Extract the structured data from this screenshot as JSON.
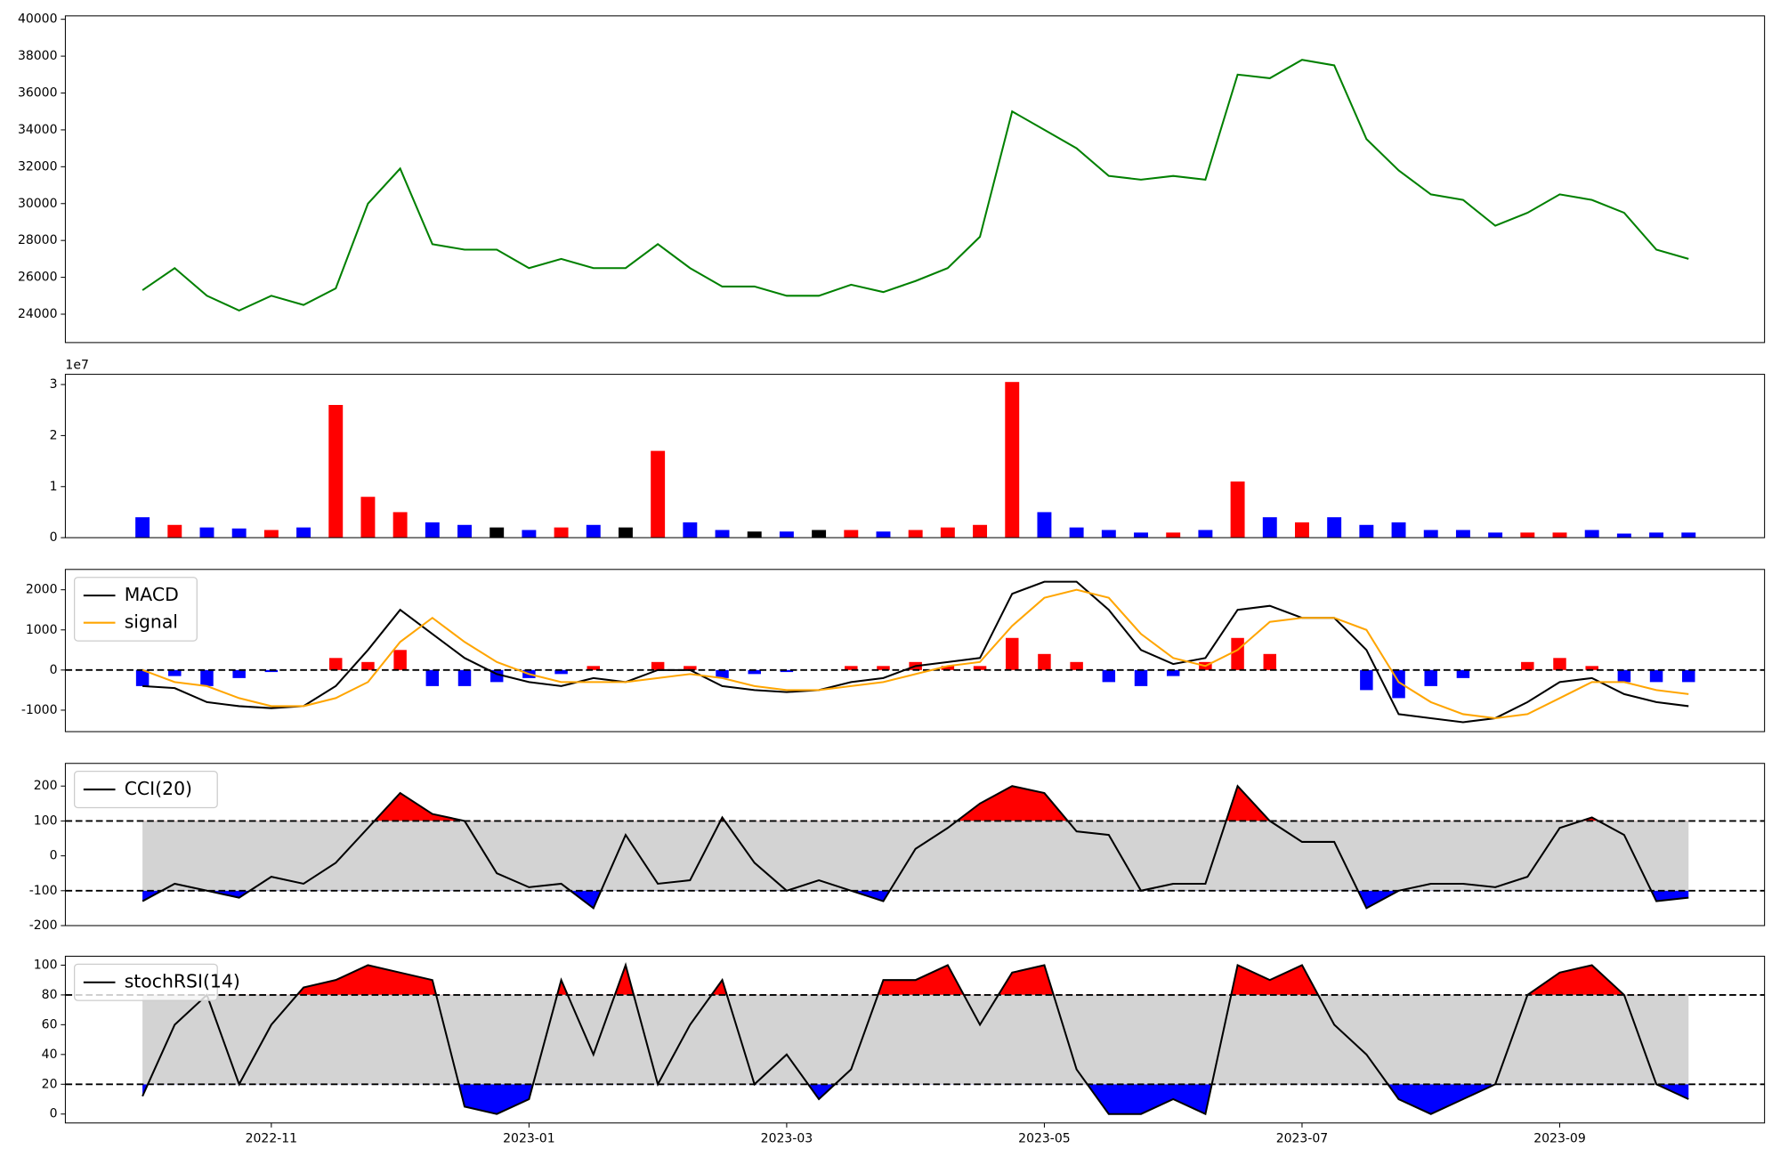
{
  "chart_data": [
    {
      "type": "line",
      "color": "#008000",
      "values": [
        25300,
        26500,
        25000,
        24200,
        25000,
        24500,
        25400,
        30000,
        31900,
        27800,
        27500,
        27500,
        26500,
        27000,
        26500,
        26500,
        27800,
        26500,
        25500,
        25500,
        25000,
        25000,
        25600,
        25200,
        25800,
        26500,
        28200,
        35000,
        34000,
        33000,
        31500,
        31300,
        31500,
        31300,
        37000,
        36800,
        37800,
        37500,
        33500,
        31800,
        30500,
        30200,
        28800,
        29500,
        30500,
        30200,
        29500,
        27500,
        27000
      ],
      "ylim": [
        22460,
        40185
      ],
      "yticks": [
        24000,
        26000,
        28000,
        30000,
        32000,
        34000,
        36000,
        38000,
        40000
      ],
      "grid": false
    },
    {
      "type": "bar",
      "offset_text": "1e7",
      "values": [
        4000000,
        2500000,
        2000000,
        1800000,
        1500000,
        2000000,
        26000000,
        8000000,
        5000000,
        3000000,
        2500000,
        2000000,
        1500000,
        2000000,
        2500000,
        2000000,
        17000000,
        3000000,
        1500000,
        1200000,
        1200000,
        1500000,
        1500000,
        1200000,
        1500000,
        2000000,
        2500000,
        30500000,
        5000000,
        2000000,
        1500000,
        1000000,
        1000000,
        1500000,
        11000000,
        4000000,
        3000000,
        4000000,
        2500000,
        3000000,
        1500000,
        1500000,
        1000000,
        1000000,
        1000000,
        1500000,
        800000,
        1000000,
        1000000
      ],
      "colors": [
        "#0000ff",
        "#ff0000",
        "#0000ff",
        "#0000ff",
        "#ff0000",
        "#0000ff",
        "#ff0000",
        "#ff0000",
        "#ff0000",
        "#0000ff",
        "#0000ff",
        "#000000",
        "#0000ff",
        "#ff0000",
        "#0000ff",
        "#000000",
        "#ff0000",
        "#0000ff",
        "#0000ff",
        "#000000",
        "#0000ff",
        "#000000",
        "#ff0000",
        "#0000ff",
        "#ff0000",
        "#ff0000",
        "#ff0000",
        "#ff0000",
        "#0000ff",
        "#0000ff",
        "#0000ff",
        "#0000ff",
        "#ff0000",
        "#0000ff",
        "#ff0000",
        "#0000ff",
        "#ff0000",
        "#0000ff",
        "#0000ff",
        "#0000ff",
        "#0000ff",
        "#0000ff",
        "#0000ff",
        "#ff0000",
        "#ff0000",
        "#0000ff",
        "#0000ff",
        "#0000ff",
        "#0000ff"
      ],
      "ylim": [
        0,
        32000000
      ],
      "yticks": [
        0,
        {
          "value": 10000000,
          "label": "1"
        },
        {
          "value": 20000000,
          "label": "2"
        },
        {
          "value": 30000000,
          "label": "3"
        }
      ],
      "grid": false
    },
    {
      "type": "line",
      "legend": "upper left",
      "series": [
        {
          "name": "MACD",
          "color": "#000000",
          "values": [
            -400,
            -450,
            -800,
            -900,
            -950,
            -900,
            -400,
            500,
            1500,
            900,
            300,
            -100,
            -300,
            -400,
            -200,
            -300,
            0,
            0,
            -400,
            -500,
            -550,
            -500,
            -300,
            -200,
            100,
            200,
            300,
            1900,
            2200,
            2200,
            1500,
            500,
            150,
            300,
            1500,
            1600,
            1300,
            1300,
            500,
            -1100,
            -1200,
            -1300,
            -1200,
            -800,
            -300,
            -200,
            -600,
            -800,
            -900
          ]
        },
        {
          "name": "signal",
          "color": "#ffa500",
          "values": [
            0,
            -300,
            -400,
            -700,
            -900,
            -900,
            -700,
            -300,
            700,
            1300,
            700,
            200,
            -100,
            -300,
            -300,
            -300,
            -200,
            -100,
            -200,
            -400,
            -500,
            -500,
            -400,
            -300,
            -100,
            100,
            200,
            1100,
            1800,
            2000,
            1800,
            900,
            300,
            100,
            500,
            1200,
            1300,
            1300,
            1000,
            -300,
            -800,
            -1100,
            -1200,
            -1100,
            -700,
            -300,
            -300,
            -500,
            -600
          ]
        }
      ],
      "histogram": {
        "positive_color": "#ff0000",
        "negative_color": "#0000ff",
        "values": [
          -400,
          -150,
          -400,
          -200,
          -50,
          0,
          300,
          200,
          500,
          -400,
          -400,
          -300,
          -200,
          -100,
          100,
          0,
          200,
          100,
          -200,
          -100,
          -50,
          0,
          100,
          100,
          200,
          100,
          100,
          800,
          400,
          200,
          -300,
          -400,
          -150,
          200,
          800,
          400,
          0,
          0,
          -500,
          -700,
          -400,
          -200,
          0,
          200,
          300,
          100,
          -300,
          -300,
          -300
        ]
      },
      "thresholds": [
        0
      ],
      "ylim": [
        -1535,
        2507
      ],
      "yticks": [
        -1000,
        0,
        1000,
        2000
      ],
      "grid": false
    },
    {
      "type": "line",
      "legend": "upper left",
      "series": [
        {
          "name": "CCI(20)",
          "color": "#000000",
          "values": [
            -130,
            -80,
            -100,
            -120,
            -60,
            -80,
            -20,
            80,
            180,
            120,
            100,
            -50,
            -90,
            -80,
            -150,
            60,
            -80,
            -70,
            110,
            -20,
            -100,
            -70,
            -100,
            -130,
            20,
            80,
            150,
            200,
            180,
            70,
            60,
            -100,
            -80,
            -80,
            200,
            100,
            40,
            40,
            -150,
            -100,
            -80,
            -80,
            -90,
            -60,
            80,
            110,
            60,
            -130,
            -120
          ]
        }
      ],
      "thresholds": [
        -100,
        100
      ],
      "band_color": "#d3d3d3",
      "above_color": "#ff0000",
      "below_color": "#0000ff",
      "ylim": [
        -200,
        265
      ],
      "yticks": [
        -200,
        -100,
        0,
        100,
        200
      ],
      "grid": false
    },
    {
      "type": "line",
      "legend": "upper left",
      "series": [
        {
          "name": "stochRSI(14)",
          "color": "#000000",
          "values": [
            12,
            60,
            80,
            20,
            60,
            85,
            90,
            100,
            95,
            90,
            5,
            0,
            10,
            90,
            40,
            100,
            20,
            60,
            90,
            20,
            40,
            10,
            30,
            90,
            90,
            100,
            60,
            95,
            100,
            30,
            0,
            0,
            10,
            0,
            100,
            90,
            100,
            60,
            40,
            10,
            0,
            10,
            20,
            80,
            95,
            100,
            80,
            20,
            10
          ]
        }
      ],
      "thresholds": [
        20,
        80
      ],
      "band_color": "#d3d3d3",
      "above_color": "#ff0000",
      "below_color": "#0000ff",
      "ylim": [
        -6,
        106
      ],
      "yticks": [
        0,
        20,
        40,
        60,
        80,
        100
      ],
      "grid": false,
      "categories": [
        null,
        null,
        null,
        null,
        "2022-11",
        null,
        null,
        null,
        null,
        null,
        null,
        null,
        "2023-01",
        null,
        null,
        null,
        null,
        null,
        null,
        null,
        "2023-03",
        null,
        null,
        null,
        null,
        null,
        null,
        null,
        "2023-05",
        null,
        null,
        null,
        null,
        null,
        null,
        null,
        "2023-07",
        null,
        null,
        null,
        null,
        null,
        null,
        null,
        "2023-09",
        null,
        null,
        null,
        null
      ]
    }
  ]
}
